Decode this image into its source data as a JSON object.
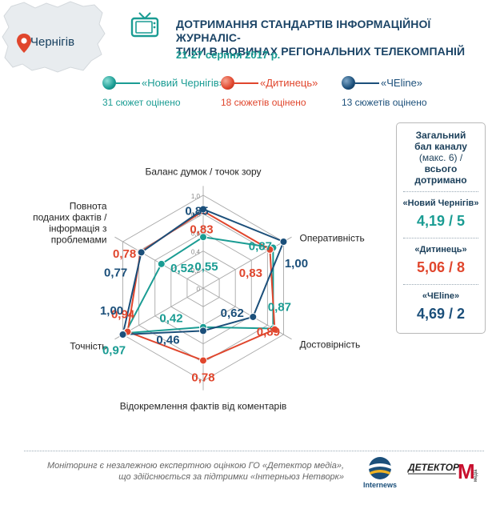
{
  "header": {
    "city": "Чернігів",
    "title": "ДОТРИМАННЯ СТАНДАРТІВ ІНФОРМАЦІЙНОЇ ЖУРНАЛІС-ТИКИ В НОВИНАХ РЕГІОНАЛЬНИХ ТЕЛЕКОМПАНІЙ",
    "title_line1": "ДОТРИМАННЯ СТАНДАРТІВ ІНФОРМАЦІЙНОЇ ЖУРНАЛІС-",
    "title_line2": "ТИКИ В НОВИНАХ РЕГІОНАЛЬНИХ ТЕЛЕКОМПАНІЙ",
    "dates": "21-27 серпня 2017 р."
  },
  "legend": [
    {
      "name": "«Новий Чернігів»",
      "count": "31 сюжет оцінено",
      "color": "#1a9c93"
    },
    {
      "name": "«Дитинець»",
      "count": "18 сюжетів оцінено",
      "color": "#e0462d"
    },
    {
      "name": "«ЧЕline»",
      "count": "13 сюжетів оцінено",
      "color": "#1b4f7a"
    }
  ],
  "side_panel": {
    "title_line1": "Загальний",
    "title_line2": "бал каналу",
    "title_line3": "(макс. 6) /",
    "title_line4": "всього",
    "title_line5": "дотримано",
    "items": [
      {
        "name": "«Новий Чернігів»",
        "score": "4,19 / 5",
        "color": "#1a9c93"
      },
      {
        "name": "«Дитинець»",
        "score": "5,06 / 8",
        "color": "#e0462d"
      },
      {
        "name": "«ЧЕline»",
        "score": "4,69 / 2",
        "color": "#1b4f7a"
      }
    ]
  },
  "footer": {
    "line1": "Моніторинг є незалежною експертною оцінкою ГО «Детектор медіа»,",
    "line2": "що здійснюється за підтримки «Інтерньюз Нетворк»",
    "internews": "Internews",
    "detector": "ДЕТЕКТОР",
    "detector_m": "М",
    "detector_media": "медіа"
  },
  "chart_data": {
    "type": "radar",
    "axes": [
      "Баланс думок / точок зору",
      "Оперативність",
      "Достовірність",
      "Відокремлення фактів від коментарів",
      "Точність",
      "Повнота поданих фактів / інформація з проблемами"
    ],
    "axis_label_lines": [
      [
        "Баланс думок / точок зору"
      ],
      [
        "Оперативність"
      ],
      [
        "Достовірність"
      ],
      [
        "Відокремлення фактів від коментарів"
      ],
      [
        "Точність"
      ],
      [
        "Повнота",
        "поданих фактів /",
        "інформація з",
        "проблемами"
      ]
    ],
    "rlim": [
      0,
      1
    ],
    "ticks": [
      0,
      0.2,
      0.4,
      0.6,
      0.8,
      1.0
    ],
    "tick_labels": [
      "0",
      "0,2",
      "0,4",
      "0,6",
      "0,8",
      "1,0"
    ],
    "series": [
      {
        "name": "«Новий Чернігів»",
        "color": "#1a9c93",
        "values": [
          0.55,
          0.87,
          0.87,
          0.42,
          0.97,
          0.52
        ],
        "labels": [
          "0,55",
          "0,87",
          "0,87",
          "0,42",
          "0,97",
          "0,52"
        ]
      },
      {
        "name": "«Дитинець»",
        "color": "#e0462d",
        "values": [
          0.83,
          0.83,
          0.89,
          0.78,
          0.94,
          0.78
        ],
        "labels": [
          "0,83",
          "0,83",
          "0,89",
          "0,78",
          "0,94",
          "0,78"
        ]
      },
      {
        "name": "«ЧЕline»",
        "color": "#1b4f7a",
        "values": [
          0.85,
          1.0,
          0.62,
          0.46,
          1.0,
          0.77
        ],
        "labels": [
          "0,85",
          "1,00",
          "0,62",
          "0,46",
          "1,00",
          "0,77"
        ]
      }
    ]
  }
}
